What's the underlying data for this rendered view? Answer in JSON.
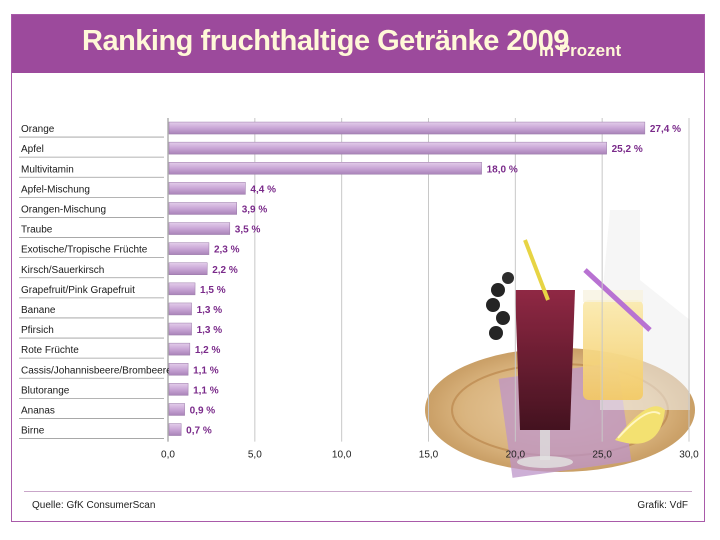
{
  "header": {
    "title": "Ranking fruchthaltige Getränke 2009",
    "subtitle": "in Prozent"
  },
  "footer": {
    "source": "Quelle: GfK ConsumerScan",
    "credit": "Grafik: VdF"
  },
  "colors": {
    "header_bg": "#9c4a9c",
    "bar_fill": "#c9a6d6",
    "value_label": "#7a2a8a",
    "grid": "#c8c8c8"
  },
  "chart_data": {
    "type": "bar",
    "orientation": "horizontal",
    "title": "Ranking fruchthaltige Getränke 2009",
    "subtitle": "in Prozent",
    "xlabel": "",
    "ylabel": "",
    "xlim": [
      0,
      30
    ],
    "ticks": [
      0,
      5,
      10,
      15,
      20,
      25,
      30
    ],
    "tick_labels": [
      "0,0",
      "5,0",
      "10,0",
      "15,0",
      "20,0",
      "25,0",
      "30,0"
    ],
    "grid": true,
    "categories": [
      "Orange",
      "Apfel",
      "Multivitamin",
      "Apfel-Mischung",
      "Orangen-Mischung",
      "Traube",
      "Exotische/Tropische Früchte",
      "Kirsch/Sauerkirsch",
      "Grapefruit/Pink Grapefruit",
      "Banane",
      "Pfirsich",
      "Rote Früchte",
      "Cassis/Johannisbeere/Brombeere",
      "Blutorange",
      "Ananas",
      "Birne"
    ],
    "values": [
      27.4,
      25.2,
      18.0,
      4.4,
      3.9,
      3.5,
      2.3,
      2.2,
      1.5,
      1.3,
      1.3,
      1.2,
      1.1,
      1.1,
      0.9,
      0.7
    ],
    "value_labels": [
      "27,4 %",
      "25,2 %",
      "18,0 %",
      "4,4 %",
      "3,9 %",
      "3,5 %",
      "2,3 %",
      "2,2 %",
      "1,5 %",
      "1,3 %",
      "1,3 %",
      "1,2 %",
      "1,1 %",
      "1,1 %",
      "0,9 %",
      "0,7 %"
    ]
  }
}
